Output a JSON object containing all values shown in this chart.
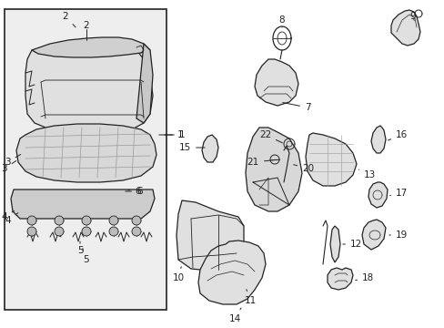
{
  "background_color": "#ffffff",
  "inset_bg": "#eeeeee",
  "line_color": "#222222",
  "label_fontsize": 7.5
}
